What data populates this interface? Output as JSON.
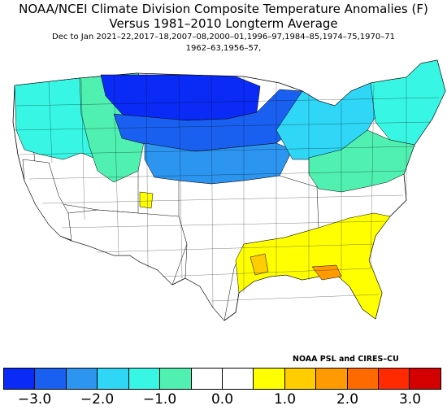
{
  "title_line1": "NOAA/NCEI Climate Division Composite Temperature Anomalies (F)",
  "title_line2": "Versus 1981–2010 Longterm Average",
  "subtitle_line1": "Dec to Jan  2021–22,2017–18,2007–08,2000–01,1996–97,1984–85,1974–75,1970–71",
  "subtitle_line2": "1962–63,1956–57,",
  "credit": "NOAA PSL and CIRES–CU",
  "colorbar": {
    "colors": [
      "#0a2bf5",
      "#1a60f0",
      "#2c95f0",
      "#2fd6f6",
      "#38f6e4",
      "#4ff0b0",
      "#ffffff",
      "#ffffff",
      "#ffff00",
      "#ffcd00",
      "#ff9b00",
      "#ff6a00",
      "#ff2a00",
      "#d40000"
    ],
    "tick_labels": [
      "−3.0",
      "−2.0",
      "−1.0",
      "0.0",
      "1.0",
      "2.0",
      "3.0"
    ]
  },
  "regions": [
    {
      "name": "pacific-northwest",
      "color": "#38f6e4"
    },
    {
      "name": "northern-rockies",
      "color": "#4ff0b0"
    },
    {
      "name": "great-basin",
      "color": "#ffffff"
    },
    {
      "name": "california",
      "color": "#ffffff"
    },
    {
      "name": "northern-plains",
      "color": "#0a2bf5"
    },
    {
      "name": "upper-midwest",
      "color": "#1a60f0"
    },
    {
      "name": "central-plains",
      "color": "#2c95f0"
    },
    {
      "name": "great-lakes",
      "color": "#2fd6f6"
    },
    {
      "name": "northeast",
      "color": "#38f6e4"
    },
    {
      "name": "mid-atlantic",
      "color": "#4ff0b0"
    },
    {
      "name": "southern-plains",
      "color": "#ffffff"
    },
    {
      "name": "southwest",
      "color": "#ffffff"
    },
    {
      "name": "southeast",
      "color": "#ffff00"
    },
    {
      "name": "gulf-coast",
      "color": "#ffcd00"
    },
    {
      "name": "florida-panhandle",
      "color": "#ff9b00"
    },
    {
      "name": "utah-spot",
      "color": "#ffff00"
    }
  ]
}
